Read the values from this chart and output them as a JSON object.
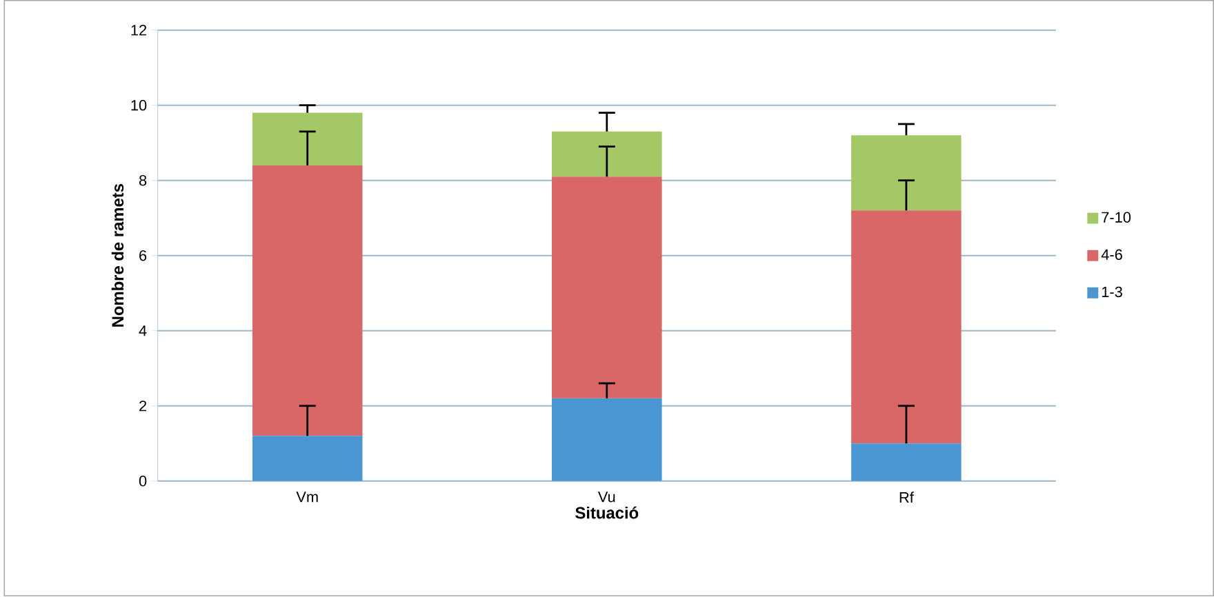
{
  "chart_data": {
    "type": "bar",
    "stacked": true,
    "xlabel": "Situació",
    "ylabel": "Nombre de ramets",
    "categories": [
      "Vm",
      "Vu",
      "Rf"
    ],
    "series": [
      {
        "name": "1-3",
        "color": "#4a96d2",
        "values": [
          1.2,
          2.2,
          1.0
        ],
        "errors": [
          [
            1.2,
            2.0
          ],
          [
            2.2,
            2.6
          ],
          [
            1.0,
            2.0
          ]
        ]
      },
      {
        "name": "4-6",
        "color": "#d96767",
        "values": [
          7.2,
          5.9,
          6.2
        ],
        "errors": [
          [
            8.4,
            9.3
          ],
          [
            8.1,
            8.9
          ],
          [
            7.2,
            8.0
          ]
        ]
      },
      {
        "name": "7-10",
        "color": "#a4c866",
        "values": [
          1.4,
          1.2,
          2.0
        ],
        "errors": [
          [
            9.8,
            10.0
          ],
          [
            9.3,
            9.8
          ],
          [
            9.2,
            9.5
          ]
        ]
      }
    ],
    "ylim": [
      0,
      12
    ],
    "yticks": [
      0,
      2,
      4,
      6,
      8,
      10,
      12
    ],
    "grid": "y",
    "legend": "right"
  }
}
